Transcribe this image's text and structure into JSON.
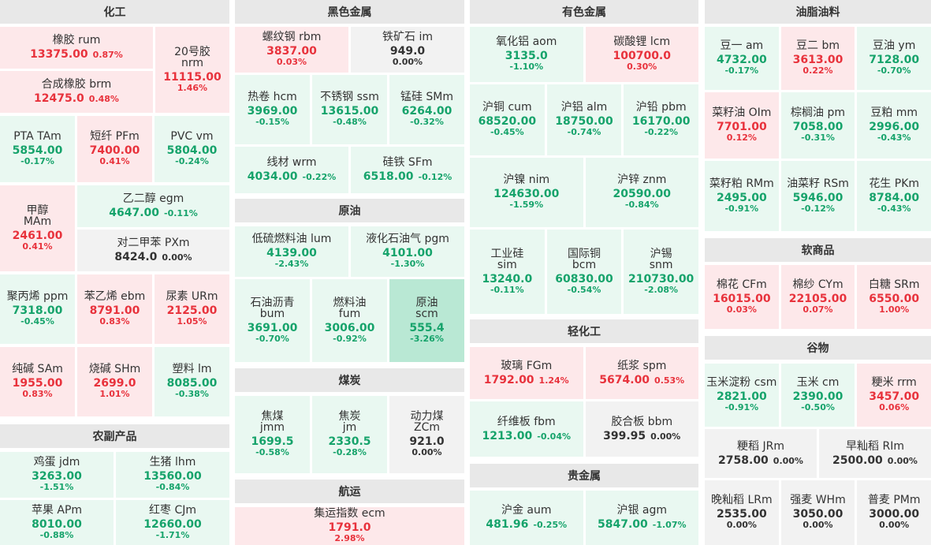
{
  "columns": {
    "chem": "化工",
    "ferrous": "黑色金属",
    "nonferrous": "有色金属",
    "oils": "油脂油料",
    "agri_side": "农副产品",
    "crude": "原油",
    "coal": "煤炭",
    "shipping": "航运",
    "light": "轻化工",
    "precious": "贵金属",
    "soft": "软商品",
    "grain": "谷物"
  },
  "items": {
    "rum": {
      "n": "橡胶  rum",
      "v": "13375.00",
      "p": "0.87%"
    },
    "nrm": {
      "n1": "20号胶",
      "n2": "nrm",
      "v": "11115.00",
      "p": "1.46%"
    },
    "brm": {
      "n": "合成橡胶  brm",
      "v": "12475.0",
      "p": "0.48%"
    },
    "tam": {
      "n": "PTA  TAm",
      "v": "5854.00",
      "p": "-0.17%"
    },
    "pfm": {
      "n": "短纤  PFm",
      "v": "7400.00",
      "p": "0.41%"
    },
    "vm": {
      "n": "PVC  vm",
      "v": "5804.00",
      "p": "-0.24%"
    },
    "mam": {
      "n1": "甲醇",
      "n2": "MAm",
      "v": "2461.00",
      "p": "0.41%"
    },
    "egm": {
      "n": "乙二醇  egm",
      "v": "4647.00",
      "p": "-0.11%"
    },
    "pxm": {
      "n": "对二甲苯  PXm",
      "v": "8424.0",
      "p": "0.00%"
    },
    "ppm": {
      "n": "聚丙烯  ppm",
      "v": "7318.00",
      "p": "-0.45%"
    },
    "ebm": {
      "n": "苯乙烯  ebm",
      "v": "8791.00",
      "p": "0.83%"
    },
    "urm": {
      "n": "尿素  URm",
      "v": "2125.00",
      "p": "1.05%"
    },
    "sam": {
      "n": "纯碱  SAm",
      "v": "1955.00",
      "p": "0.83%"
    },
    "shm": {
      "n": "烧碱  SHm",
      "v": "2699.0",
      "p": "1.01%"
    },
    "lm": {
      "n": "塑料  lm",
      "v": "8085.00",
      "p": "-0.38%"
    },
    "jdm": {
      "n": "鸡蛋  jdm",
      "v": "3263.00",
      "p": "-1.51%"
    },
    "lhm": {
      "n": "生猪  lhm",
      "v": "13560.00",
      "p": "-0.84%"
    },
    "apm": {
      "n": "苹果  APm",
      "v": "8010.00",
      "p": "-0.88%"
    },
    "cjm": {
      "n": "红枣  CJm",
      "v": "12660.00",
      "p": "-1.71%"
    },
    "rbm": {
      "n": "螺纹钢  rbm",
      "v": "3837.00",
      "p": "0.03%"
    },
    "im": {
      "n": "铁矿石  im",
      "v": "949.0",
      "p": "0.00%"
    },
    "hcm": {
      "n": "热卷  hcm",
      "v": "3969.00",
      "p": "-0.15%"
    },
    "ssm": {
      "n": "不锈钢  ssm",
      "v": "13615.00",
      "p": "-0.48%"
    },
    "smm": {
      "n": "锰硅  SMm",
      "v": "6264.00",
      "p": "-0.32%"
    },
    "wrm": {
      "n": "线材  wrm",
      "v": "4034.00",
      "p": "-0.22%"
    },
    "sfm": {
      "n": "硅铁  SFm",
      "v": "6518.00",
      "p": "-0.12%"
    },
    "lum": {
      "n": "低硫燃料油  lum",
      "v": "4139.00",
      "p": "-2.43%"
    },
    "pgm": {
      "n": "液化石油气  pgm",
      "v": "4101.00",
      "p": "-1.30%"
    },
    "bum": {
      "n1": "石油沥青",
      "n2": "bum",
      "v": "3691.00",
      "p": "-0.70%"
    },
    "fum": {
      "n1": "燃料油",
      "n2": "fum",
      "v": "3006.00",
      "p": "-0.92%"
    },
    "scm": {
      "n1": "原油",
      "n2": "scm",
      "v": "555.4",
      "p": "-3.26%"
    },
    "jmm": {
      "n1": "焦煤",
      "n2": "jmm",
      "v": "1699.5",
      "p": "-0.58%"
    },
    "jm": {
      "n1": "焦炭",
      "n2": "jm",
      "v": "2330.5",
      "p": "-0.28%"
    },
    "zcm": {
      "n1": "动力煤",
      "n2": "ZCm",
      "v": "921.0",
      "p": "0.00%"
    },
    "ecm": {
      "n": "集运指数  ecm",
      "v": "1791.0",
      "p": "2.98%"
    },
    "aom": {
      "n": "氧化铝  aom",
      "v": "3135.0",
      "p": "-1.10%"
    },
    "lcm": {
      "n": "碳酸锂  lcm",
      "v": "100700.0",
      "p": "0.30%"
    },
    "cum": {
      "n": "沪铜  cum",
      "v": "68520.00",
      "p": "-0.45%"
    },
    "alm": {
      "n": "沪铝  alm",
      "v": "18750.00",
      "p": "-0.74%"
    },
    "pbm": {
      "n": "沪铅  pbm",
      "v": "16170.00",
      "p": "-0.22%"
    },
    "nim": {
      "n": "沪镍  nim",
      "v": "124630.00",
      "p": "-1.59%"
    },
    "znm": {
      "n": "沪锌  znm",
      "v": "20590.00",
      "p": "-0.84%"
    },
    "sim": {
      "n1": "工业硅",
      "n2": "sim",
      "v": "13240.0",
      "p": "-0.11%"
    },
    "bcm": {
      "n1": "国际铜",
      "n2": "bcm",
      "v": "60830.00",
      "p": "-0.54%"
    },
    "snm": {
      "n1": "沪锡",
      "n2": "snm",
      "v": "210730.00",
      "p": "-2.08%"
    },
    "fgm": {
      "n": "玻璃  FGm",
      "v": "1792.00",
      "p": "1.24%"
    },
    "spm": {
      "n": "纸浆  spm",
      "v": "5674.00",
      "p": "0.53%"
    },
    "fbm": {
      "n": "纤维板  fbm",
      "v": "1213.00",
      "p": "-0.04%"
    },
    "bbm": {
      "n": "胶合板  bbm",
      "v": "399.95",
      "p": "0.00%"
    },
    "aum": {
      "n": "沪金  aum",
      "v": "481.96",
      "p": "-0.25%"
    },
    "agm": {
      "n": "沪银  agm",
      "v": "5847.00",
      "p": "-1.07%"
    },
    "am": {
      "n": "豆一  am",
      "v": "4732.00",
      "p": "-0.17%"
    },
    "bm": {
      "n": "豆二  bm",
      "v": "3613.00",
      "p": "0.22%"
    },
    "ym": {
      "n": "豆油  ym",
      "v": "7128.00",
      "p": "-0.70%"
    },
    "oim": {
      "n": "菜籽油  OIm",
      "v": "7701.00",
      "p": "0.12%"
    },
    "pm": {
      "n": "棕榈油  pm",
      "v": "7058.00",
      "p": "-0.31%"
    },
    "mm": {
      "n": "豆粕  mm",
      "v": "2996.00",
      "p": "-0.43%"
    },
    "rmm": {
      "n": "菜籽粕  RMm",
      "v": "2495.00",
      "p": "-0.91%"
    },
    "rsm": {
      "n": "油菜籽  RSm",
      "v": "5946.00",
      "p": "-0.12%"
    },
    "pkm": {
      "n": "花生  PKm",
      "v": "8784.00",
      "p": "-0.43%"
    },
    "cfm": {
      "n": "棉花  CFm",
      "v": "16015.00",
      "p": "0.03%"
    },
    "cym": {
      "n": "棉纱  CYm",
      "v": "22105.00",
      "p": "0.07%"
    },
    "srm": {
      "n": "白糖  SRm",
      "v": "6550.00",
      "p": "1.00%"
    },
    "csm": {
      "n": "玉米淀粉  csm",
      "v": "2821.00",
      "p": "-0.91%"
    },
    "cm": {
      "n": "玉米  cm",
      "v": "2390.00",
      "p": "-0.50%"
    },
    "rrm": {
      "n": "粳米  rrm",
      "v": "3457.00",
      "p": "0.06%"
    },
    "jrm": {
      "n": "粳稻  JRm",
      "v": "2758.00",
      "p": "0.00%"
    },
    "rim": {
      "n": "早籼稻  RIm",
      "v": "2500.00",
      "p": "0.00%"
    },
    "lrm": {
      "n": "晚籼稻  LRm",
      "v": "2535.00",
      "p": "0.00%"
    },
    "whm": {
      "n": "强麦  WHm",
      "v": "3050.00",
      "p": "0.00%"
    },
    "pmm": {
      "n": "普麦  PMm",
      "v": "3000.00",
      "p": "0.00%"
    }
  },
  "colors": {
    "up_bg": "#fde8ea",
    "down_bg": "#e9f8f1",
    "flat_bg": "#f2f2f2",
    "up_text": "#e8323c",
    "down_text": "#16a36b",
    "header_bg": "#e8e8e8"
  }
}
